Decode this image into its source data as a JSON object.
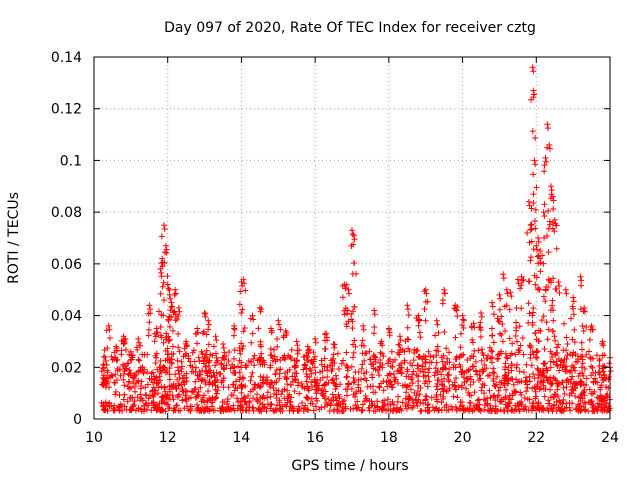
{
  "chart_data": {
    "type": "scatter",
    "title": "Day 097 of 2020, Rate Of TEC Index for receiver cztg",
    "xlabel": "GPS time / hours",
    "ylabel": "ROTI / TECUs",
    "xlim": [
      10,
      24
    ],
    "ylim": [
      0,
      0.14
    ],
    "xticks": [
      "10",
      "12",
      "14",
      "16",
      "18",
      "20",
      "22",
      "24"
    ],
    "yticks": [
      "0",
      "0.02",
      "0.04",
      "0.06",
      "0.08",
      "0.1",
      "0.12",
      "0.14"
    ],
    "grid": true,
    "marker": "+",
    "color": "#ff0000",
    "series": [
      {
        "name": "ROTI",
        "x": [
          10.3,
          10.4,
          10.6,
          10.8,
          11.0,
          11.2,
          11.5,
          11.7,
          11.8,
          11.85,
          11.9,
          11.95,
          12.0,
          12.05,
          12.1,
          12.2,
          12.3,
          12.5,
          12.8,
          13.0,
          13.1,
          13.3,
          13.5,
          13.8,
          14.0,
          14.05,
          14.3,
          14.5,
          14.8,
          15.0,
          15.2,
          15.5,
          15.8,
          16.0,
          16.3,
          16.5,
          16.8,
          16.9,
          17.0,
          17.05,
          17.3,
          17.6,
          17.8,
          18.0,
          18.3,
          18.5,
          18.8,
          19.0,
          19.3,
          19.5,
          19.8,
          20.0,
          20.3,
          20.5,
          20.8,
          21.0,
          21.1,
          21.2,
          21.3,
          21.5,
          21.6,
          21.8,
          21.85,
          21.9,
          21.92,
          21.95,
          22.0,
          22.05,
          22.1,
          22.2,
          22.25,
          22.3,
          22.35,
          22.4,
          22.45,
          22.5,
          22.6,
          22.8,
          23.0,
          23.2,
          23.3,
          23.5,
          23.8,
          24.0
        ],
        "y": [
          0.024,
          0.036,
          0.028,
          0.032,
          0.026,
          0.031,
          0.044,
          0.035,
          0.058,
          0.062,
          0.075,
          0.067,
          0.052,
          0.048,
          0.045,
          0.05,
          0.043,
          0.03,
          0.035,
          0.041,
          0.038,
          0.032,
          0.029,
          0.036,
          0.053,
          0.054,
          0.04,
          0.043,
          0.035,
          0.038,
          0.034,
          0.03,
          0.028,
          0.031,
          0.033,
          0.029,
          0.052,
          0.05,
          0.073,
          0.071,
          0.036,
          0.042,
          0.03,
          0.035,
          0.032,
          0.044,
          0.04,
          0.05,
          0.038,
          0.05,
          0.044,
          0.04,
          0.037,
          0.041,
          0.045,
          0.048,
          0.056,
          0.05,
          0.049,
          0.054,
          0.055,
          0.084,
          0.075,
          0.136,
          0.127,
          0.1,
          0.067,
          0.07,
          0.062,
          0.08,
          0.101,
          0.114,
          0.106,
          0.09,
          0.086,
          0.077,
          0.053,
          0.05,
          0.047,
          0.055,
          0.043,
          0.036,
          0.03,
          0.02
        ],
        "baseline_density": "dense points between 0.002 and 0.025 across 10.2 to 24"
      }
    ]
  }
}
